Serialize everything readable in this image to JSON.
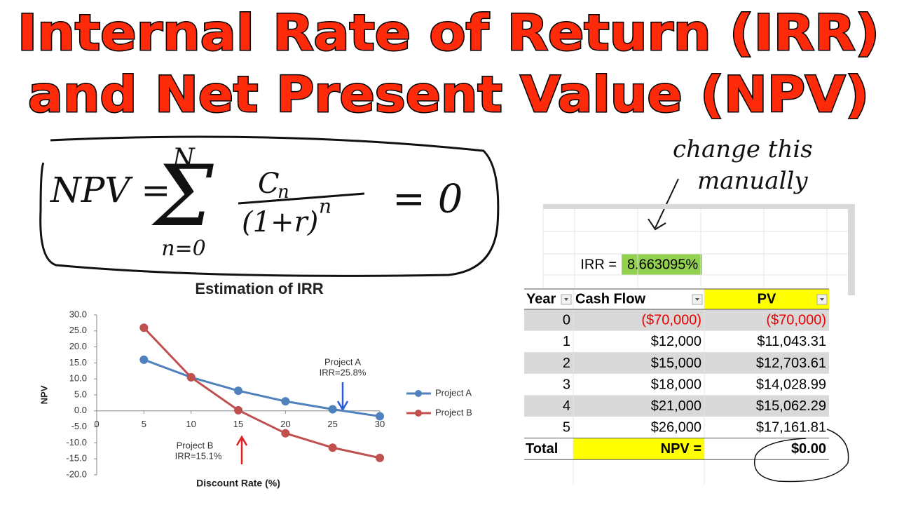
{
  "header": {
    "title": [
      "Internal Rate of Return (IRR)",
      "and Net Present Value (NPV)"
    ]
  },
  "formula": {
    "lhs": "NPV =",
    "sum": "Σ",
    "upper": "N",
    "lower": "n=0",
    "numerator": "C",
    "numerator_sub": "n",
    "denominator": "(1+r)",
    "denominator_exp": "n",
    "rhs": "= 0"
  },
  "note": [
    "change this",
    "manually"
  ],
  "chart_data": {
    "type": "line",
    "title": "Estimation of IRR",
    "x_label": "Discount Rate (%)",
    "y_label": "NPV",
    "x": [
      5,
      10,
      15,
      20,
      25,
      30
    ],
    "series": [
      {
        "name": "Project A",
        "color": "#4f81bd",
        "values": [
          16.0,
          10.5,
          6.3,
          3.0,
          0.5,
          -1.7
        ]
      },
      {
        "name": "Project B",
        "color": "#c0504d",
        "values": [
          26.0,
          10.5,
          0.2,
          -7.0,
          -11.5,
          -14.7
        ]
      }
    ],
    "xlim": [
      0,
      30
    ],
    "xticks": [
      0,
      5,
      10,
      15,
      20,
      25,
      30
    ],
    "ylim": [
      -20,
      30
    ],
    "yticks": [
      {
        "value": 30,
        "label": "30.0"
      },
      {
        "value": 25,
        "label": "25.0"
      },
      {
        "value": 20,
        "label": "20.0"
      },
      {
        "value": 15,
        "label": "15.0"
      },
      {
        "value": 10,
        "label": "10.0"
      },
      {
        "value": 5,
        "label": "5.0"
      },
      {
        "value": 0,
        "label": "0.0"
      },
      {
        "value": -5,
        "label": "-5.0"
      },
      {
        "value": -10,
        "label": "-10.0"
      },
      {
        "value": -15,
        "label": "-15.0"
      },
      {
        "value": -20,
        "label": "-20.0"
      }
    ],
    "annotations": [
      "Project A",
      "IRR=25.8%",
      "Project B",
      "IRR=15.1%"
    ],
    "legend": "right",
    "grid": false
  },
  "irr": {
    "label": "IRR =",
    "value": "8.663095%"
  },
  "table": {
    "header": [
      "Year",
      "Cash Flow",
      "PV"
    ],
    "rows": [
      [
        0,
        "($70,000)",
        "($70,000)"
      ],
      [
        1,
        "$12,000",
        "$11,043.31"
      ],
      [
        2,
        "$15,000",
        "$12,703.61"
      ],
      [
        3,
        "$18,000",
        "$14,028.99"
      ],
      [
        4,
        "$21,000",
        "$15,062.29"
      ],
      [
        5,
        "$26,000",
        "$17,161.81"
      ]
    ],
    "total": [
      "Total",
      "NPV =",
      "$0.00"
    ]
  }
}
